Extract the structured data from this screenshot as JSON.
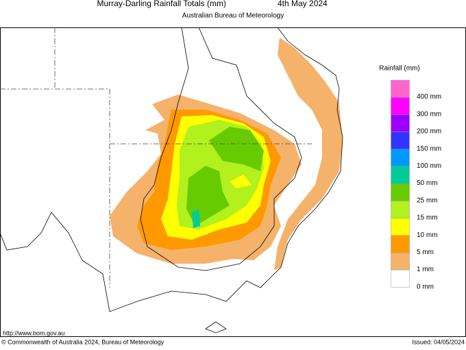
{
  "header": {
    "title": "Murray-Darling Rainfall Totals (mm)",
    "date": "4th May 2024",
    "subtitle": "Australian Bureau of Meteorology"
  },
  "legend": {
    "title": "Rainfall (mm)",
    "items": [
      {
        "label": "400 mm",
        "color": "#ff66cc"
      },
      {
        "label": "300 mm",
        "color": "#ff00ff"
      },
      {
        "label": "200 mm",
        "color": "#9900ff"
      },
      {
        "label": "150 mm",
        "color": "#3333ff"
      },
      {
        "label": "100 mm",
        "color": "#0099ff"
      },
      {
        "label": "50 mm",
        "color": "#00cc99"
      },
      {
        "label": "25 mm",
        "color": "#66cc00"
      },
      {
        "label": "15 mm",
        "color": "#b2f01e"
      },
      {
        "label": "10 mm",
        "color": "#ffff00"
      },
      {
        "label": "5 mm",
        "color": "#ff9900"
      },
      {
        "label": "1 mm",
        "color": "#f5b26b"
      },
      {
        "label": "0 mm",
        "color": "#ffffff"
      }
    ]
  },
  "footer": {
    "url": "http://www.bom.gov.au",
    "copyright": "© Commonwealth of Australia 2024, Bureau of Meteorology",
    "issued": "Issued: 04/05/2024"
  }
}
